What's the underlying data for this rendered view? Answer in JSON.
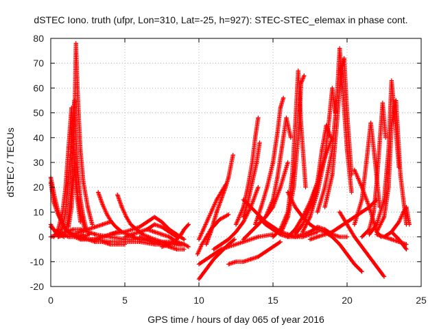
{
  "chart_data": {
    "type": "scatter",
    "title": "dSTEC Iono. truth (ufpr, Lon=310, Lat=-25, h=927): STEC-STEC_elemax in phase cont.",
    "xlabel": "GPS time / hours of day 065 of year 2016",
    "ylabel": "dSTEC  / TECUs",
    "xlim": [
      0,
      25
    ],
    "ylim": [
      -20,
      80
    ],
    "xticks": [
      0,
      5,
      10,
      15,
      20,
      25
    ],
    "yticks": [
      -20,
      -10,
      0,
      10,
      20,
      30,
      40,
      50,
      60,
      70,
      80
    ],
    "grid": true,
    "marker": "plus",
    "color": "#ff0000",
    "series": [
      {
        "x": [
          0.0,
          0.3,
          0.6,
          1.0,
          1.4,
          1.8,
          2.2
        ],
        "y": [
          24,
          15,
          8,
          3,
          1,
          0,
          1
        ]
      },
      {
        "x": [
          0.0,
          0.2,
          0.5,
          0.9,
          1.2,
          1.5,
          1.8,
          2.2,
          2.6
        ],
        "y": [
          22,
          14,
          9,
          4,
          2,
          1,
          0,
          0,
          1
        ]
      },
      {
        "x": [
          0.0,
          0.3,
          0.6,
          0.9
        ],
        "y": [
          5,
          2,
          1,
          0
        ]
      },
      {
        "x": [
          0.0,
          0.4,
          0.8,
          1.2,
          1.6,
          2.0,
          2.5,
          3.0,
          3.5,
          4.0,
          4.5,
          5.0
        ],
        "y": [
          4,
          2,
          1,
          0,
          0,
          -1,
          -1,
          -2,
          -2,
          -3,
          -3,
          -3
        ]
      },
      {
        "x": [
          0.2,
          0.5,
          0.8,
          1.0,
          1.2,
          1.4,
          1.6,
          1.8,
          2.0,
          2.3
        ],
        "y": [
          0,
          3,
          10,
          20,
          36,
          52,
          30,
          18,
          10,
          3
        ]
      },
      {
        "x": [
          0.5,
          0.8,
          1.0,
          1.2,
          1.4,
          1.6,
          1.8,
          2.0,
          2.2,
          2.4
        ],
        "y": [
          0,
          4,
          10,
          22,
          40,
          55,
          28,
          15,
          8,
          3
        ]
      },
      {
        "x": [
          1.0,
          1.2,
          1.4,
          1.6,
          1.7,
          1.8,
          2.0,
          2.2,
          2.5,
          2.8
        ],
        "y": [
          2,
          8,
          20,
          45,
          78,
          60,
          35,
          22,
          12,
          5
        ]
      },
      {
        "x": [
          1.2,
          1.4,
          1.6,
          1.8,
          2.0
        ],
        "y": [
          4,
          12,
          28,
          15,
          6
        ]
      },
      {
        "x": [
          0.0,
          0.5,
          1.0,
          1.5,
          2.0,
          2.5,
          3.0
        ],
        "y": [
          0,
          1,
          2,
          3,
          3,
          2,
          1
        ]
      },
      {
        "x": [
          0.5,
          1.0,
          1.5,
          2.0,
          2.5,
          3.0,
          3.5,
          4.0
        ],
        "y": [
          0,
          1,
          1,
          2,
          3,
          4,
          5,
          6
        ]
      },
      {
        "x": [
          1.5,
          2.0,
          2.5,
          3.0,
          3.5,
          4.0,
          4.5
        ],
        "y": [
          1,
          0,
          -1,
          -1,
          0,
          1,
          2
        ]
      },
      {
        "x": [
          3.2,
          3.5,
          3.8,
          4.1,
          4.4,
          4.8,
          5.2,
          5.6,
          6.0
        ],
        "y": [
          18,
          13,
          9,
          6,
          4,
          2,
          1,
          0,
          -1
        ]
      },
      {
        "x": [
          4.5,
          4.8,
          5.1,
          5.4,
          5.8,
          6.2,
          6.6,
          7.0,
          7.5,
          8.0
        ],
        "y": [
          17,
          12,
          8,
          5,
          3,
          1,
          0,
          -1,
          -2,
          -3
        ]
      },
      {
        "x": [
          2.0,
          3.0,
          4.0,
          5.0,
          6.0,
          7.0,
          8.0,
          9.0
        ],
        "y": [
          -1,
          -1,
          -2,
          -2,
          -2,
          -3,
          -3,
          -3
        ]
      },
      {
        "x": [
          3.0,
          4.0,
          5.0,
          6.0,
          7.0,
          8.0,
          8.8
        ],
        "y": [
          1,
          0,
          -1,
          -1,
          -2,
          -2,
          -3
        ]
      },
      {
        "x": [
          4.0,
          5.0,
          6.0,
          6.5,
          7.0,
          7.5,
          8.0,
          8.5,
          9.0
        ],
        "y": [
          1,
          2,
          4,
          6,
          8,
          6,
          3,
          1,
          -1
        ]
      },
      {
        "x": [
          5.0,
          5.5,
          6.0,
          6.5,
          7.0,
          7.5,
          8.0,
          8.5
        ],
        "y": [
          0,
          1,
          2,
          3,
          5,
          4,
          2,
          0
        ]
      },
      {
        "x": [
          6.0,
          6.5,
          7.0,
          7.5,
          8.0,
          8.5,
          9.0
        ],
        "y": [
          0,
          -1,
          -2,
          -3,
          -4,
          -5,
          -5
        ]
      },
      {
        "x": [
          6.5,
          7.0,
          7.5,
          8.0,
          8.5,
          9.0,
          9.3
        ],
        "y": [
          3,
          2,
          1,
          0,
          -2,
          -3,
          -4
        ]
      },
      {
        "x": [
          7.5,
          8.0,
          8.5,
          8.8,
          9.0,
          9.3
        ],
        "y": [
          -4,
          -3,
          -1,
          1,
          3,
          5
        ]
      },
      {
        "x": [
          10.0,
          10.5,
          11.0,
          11.5,
          12.0,
          12.4
        ],
        "y": [
          -17,
          -13,
          -9,
          -6,
          -3,
          -1
        ]
      },
      {
        "x": [
          10.0,
          10.5,
          11.0,
          11.5,
          12.0,
          13.0,
          14.0,
          15.0
        ],
        "y": [
          -11,
          -9,
          -7,
          -5,
          -4,
          -2,
          0,
          1
        ]
      },
      {
        "x": [
          9.9,
          10.2,
          10.5,
          10.8,
          11.1,
          11.4,
          11.7,
          12.0
        ],
        "y": [
          -7,
          -3,
          0,
          3,
          5,
          7,
          8,
          9
        ]
      },
      {
        "x": [
          10.0,
          10.3,
          10.6,
          10.9,
          11.2,
          11.5,
          11.8
        ],
        "y": [
          -1,
          3,
          7,
          11,
          15,
          18,
          21
        ]
      },
      {
        "x": [
          10.5,
          10.8,
          11.0,
          11.2,
          11.5,
          11.8,
          12.0,
          12.3
        ],
        "y": [
          -3,
          2,
          6,
          10,
          15,
          20,
          24,
          33
        ]
      },
      {
        "x": [
          11.0,
          11.5,
          12.0,
          12.5,
          13.0,
          13.5,
          14.0
        ],
        "y": [
          -5,
          -3,
          -1,
          2,
          6,
          12,
          20
        ]
      },
      {
        "x": [
          12.0,
          12.5,
          13.0,
          13.5,
          14.0,
          14.5,
          15.0,
          15.5
        ],
        "y": [
          -11,
          -10,
          -10,
          -9,
          -8,
          -6,
          -4,
          -2
        ]
      },
      {
        "x": [
          12.5,
          13.0,
          13.3,
          13.6,
          13.8,
          14.0
        ],
        "y": [
          5,
          12,
          20,
          30,
          40,
          48
        ]
      },
      {
        "x": [
          13.0,
          13.3,
          13.6,
          13.9,
          14.1
        ],
        "y": [
          8,
          14,
          22,
          30,
          38
        ]
      },
      {
        "x": [
          13.0,
          13.5,
          14.0,
          14.5,
          15.0,
          15.5,
          16.0
        ],
        "y": [
          -1,
          2,
          5,
          8,
          12,
          20,
          30
        ]
      },
      {
        "x": [
          13.8,
          14.2,
          14.6,
          15.0,
          15.3,
          15.5,
          15.7
        ],
        "y": [
          5,
          12,
          20,
          30,
          42,
          52,
          56
        ]
      },
      {
        "x": [
          14.5,
          15.0,
          15.3,
          15.6,
          15.9,
          16.2
        ],
        "y": [
          8,
          15,
          24,
          36,
          48,
          40
        ]
      },
      {
        "x": [
          15.0,
          15.5,
          16.0,
          16.3,
          16.5,
          16.7,
          16.9,
          17.2
        ],
        "y": [
          0,
          3,
          10,
          25,
          45,
          67,
          45,
          20
        ]
      },
      {
        "x": [
          15.5,
          16.0,
          16.4,
          16.7,
          16.9,
          17.1
        ],
        "y": [
          1,
          8,
          20,
          40,
          62,
          65
        ]
      },
      {
        "x": [
          16.0,
          16.5,
          17.0,
          17.5,
          18.0,
          18.5,
          19.0
        ],
        "y": [
          0,
          3,
          8,
          14,
          22,
          32,
          40
        ]
      },
      {
        "x": [
          16.5,
          17.0,
          17.5,
          18.0,
          18.3,
          18.6,
          18.9
        ],
        "y": [
          1,
          5,
          12,
          22,
          35,
          45,
          40
        ]
      },
      {
        "x": [
          17.0,
          17.5,
          18.0,
          18.5,
          18.8,
          19.0,
          19.2
        ],
        "y": [
          2,
          8,
          18,
          32,
          48,
          60,
          50
        ]
      },
      {
        "x": [
          16.0,
          16.5,
          17.0,
          17.5,
          18.0,
          18.5,
          19.0,
          19.5,
          20.0,
          20.5,
          21.0
        ],
        "y": [
          18,
          12,
          8,
          5,
          3,
          2,
          0,
          -3,
          -7,
          -11,
          -14
        ]
      },
      {
        "x": [
          18.0,
          18.5,
          19.0,
          19.3,
          19.5,
          19.7,
          20.0,
          20.3
        ],
        "y": [
          10,
          20,
          35,
          55,
          76,
          60,
          35,
          18
        ]
      },
      {
        "x": [
          18.5,
          19.0,
          19.3,
          19.6,
          19.8,
          20.0,
          20.3
        ],
        "y": [
          12,
          25,
          45,
          68,
          72,
          50,
          25
        ]
      },
      {
        "x": [
          19.5,
          20.0,
          20.5,
          21.0,
          21.5,
          22.0,
          22.5
        ],
        "y": [
          10,
          5,
          0,
          -4,
          -8,
          -12,
          -16
        ]
      },
      {
        "x": [
          17.5,
          18.0,
          18.5,
          19.0,
          19.5,
          20.0,
          20.5,
          21.0,
          21.5,
          22.0
        ],
        "y": [
          -1,
          0,
          1,
          2,
          4,
          6,
          8,
          10,
          12,
          15
        ]
      },
      {
        "x": [
          20.5,
          21.0,
          21.3,
          21.6,
          21.9,
          22.2
        ],
        "y": [
          5,
          15,
          30,
          46,
          30,
          12
        ]
      },
      {
        "x": [
          20.5,
          21.0,
          21.5,
          21.8,
          22.0,
          22.3
        ],
        "y": [
          27,
          20,
          12,
          6,
          2,
          0
        ]
      },
      {
        "x": [
          21.0,
          21.5,
          21.8,
          22.0,
          22.2,
          22.4,
          22.6
        ],
        "y": [
          0,
          3,
          10,
          22,
          38,
          54,
          40
        ]
      },
      {
        "x": [
          21.5,
          22.0,
          22.5,
          22.8,
          23.0,
          23.2,
          23.5
        ],
        "y": [
          1,
          5,
          15,
          35,
          63,
          50,
          28
        ]
      },
      {
        "x": [
          22.0,
          22.5,
          22.8,
          23.0,
          23.3,
          23.6,
          24.0
        ],
        "y": [
          2,
          8,
          20,
          45,
          55,
          25,
          5
        ]
      },
      {
        "x": [
          22.5,
          23.0,
          23.5,
          23.8,
          24.0,
          24.2
        ],
        "y": [
          0,
          2,
          6,
          10,
          12,
          5
        ]
      },
      {
        "x": [
          22.0,
          22.5,
          23.0,
          23.5,
          24.0
        ],
        "y": [
          1,
          0,
          -1,
          -2,
          -3
        ]
      },
      {
        "x": [
          23.0,
          23.5,
          24.0
        ],
        "y": [
          2,
          -1,
          -5
        ]
      },
      {
        "x": [
          13.0,
          13.5,
          14.0,
          14.5,
          15.0,
          15.5,
          16.0,
          16.5,
          17.0,
          17.5,
          18.0
        ],
        "y": [
          15,
          12,
          9,
          6,
          4,
          2,
          1,
          0,
          0,
          1,
          2
        ]
      },
      {
        "x": [
          14.0,
          14.5,
          15.0,
          15.5,
          16.0,
          16.5,
          17.0,
          17.5,
          18.0,
          18.5,
          19.0,
          19.5,
          20.0
        ],
        "y": [
          8,
          5,
          3,
          1,
          0,
          0,
          1,
          2,
          4,
          3,
          1,
          0,
          0
        ]
      }
    ]
  }
}
